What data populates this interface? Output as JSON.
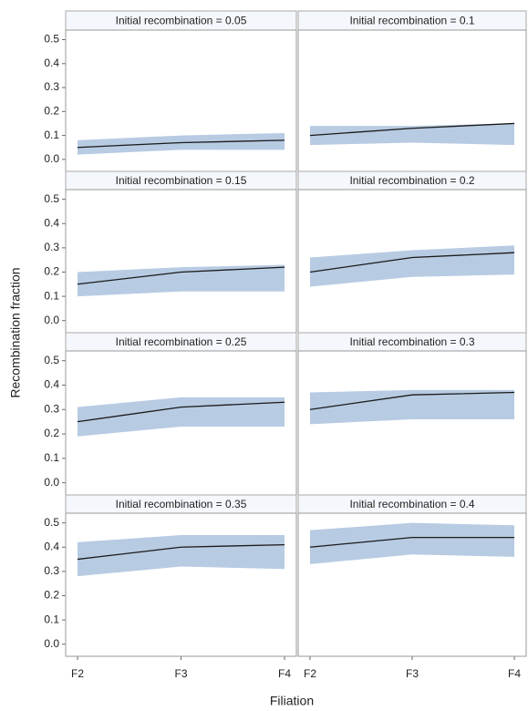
{
  "axis_labels": {
    "x": "Filiation",
    "y": "Recombination fraction"
  },
  "chart_data": [
    {
      "type": "line",
      "title": "Initial recombination = 0.05",
      "categories": [
        "F2",
        "F3",
        "F4"
      ],
      "values": [
        0.05,
        0.07,
        0.08
      ],
      "lower": [
        0.02,
        0.04,
        0.04
      ],
      "upper": [
        0.08,
        0.1,
        0.11
      ],
      "color": "#1a1a1a",
      "band_color": "#b7cbe3",
      "ylim": [
        -0.05,
        0.54
      ],
      "yticks": [
        {
          "value": 0,
          "label": "0.0"
        },
        0.1,
        0.2,
        0.3,
        0.4,
        0.5
      ]
    },
    {
      "type": "line",
      "title": "Initial recombination = 0.1",
      "categories": [
        "F2",
        "F3",
        "F4"
      ],
      "values": [
        0.1,
        0.13,
        0.15
      ],
      "lower": [
        0.06,
        0.07,
        0.06
      ],
      "upper": [
        0.14,
        0.14,
        0.15
      ],
      "color": "#1a1a1a",
      "band_color": "#b7cbe3",
      "ylim": [
        -0.05,
        0.54
      ]
    },
    {
      "type": "line",
      "title": "Initial recombination = 0.15",
      "categories": [
        "F2",
        "F3",
        "F4"
      ],
      "values": [
        0.15,
        0.2,
        0.22
      ],
      "lower": [
        0.1,
        0.12,
        0.12
      ],
      "upper": [
        0.2,
        0.22,
        0.23
      ],
      "color": "#1a1a1a",
      "band_color": "#b7cbe3",
      "ylim": [
        -0.05,
        0.54
      ],
      "yticks": [
        {
          "value": 0,
          "label": "0.0"
        },
        0.1,
        0.2,
        0.3,
        0.4,
        0.5
      ]
    },
    {
      "type": "line",
      "title": "Initial recombination = 0.2",
      "categories": [
        "F2",
        "F3",
        "F4"
      ],
      "values": [
        0.2,
        0.26,
        0.28
      ],
      "lower": [
        0.14,
        0.18,
        0.19
      ],
      "upper": [
        0.26,
        0.29,
        0.31
      ],
      "color": "#1a1a1a",
      "band_color": "#b7cbe3",
      "ylim": [
        -0.05,
        0.54
      ]
    },
    {
      "type": "line",
      "title": "Initial recombination = 0.25",
      "categories": [
        "F2",
        "F3",
        "F4"
      ],
      "values": [
        0.25,
        0.31,
        0.33
      ],
      "lower": [
        0.19,
        0.23,
        0.23
      ],
      "upper": [
        0.31,
        0.35,
        0.35
      ],
      "color": "#1a1a1a",
      "band_color": "#b7cbe3",
      "ylim": [
        -0.05,
        0.54
      ],
      "yticks": [
        {
          "value": 0,
          "label": "0.0"
        },
        0.1,
        0.2,
        0.3,
        0.4,
        0.5
      ]
    },
    {
      "type": "line",
      "title": "Initial recombination = 0.3",
      "categories": [
        "F2",
        "F3",
        "F4"
      ],
      "values": [
        0.3,
        0.36,
        0.37
      ],
      "lower": [
        0.24,
        0.26,
        0.26
      ],
      "upper": [
        0.37,
        0.38,
        0.38
      ],
      "color": "#1a1a1a",
      "band_color": "#b7cbe3",
      "ylim": [
        -0.05,
        0.54
      ]
    },
    {
      "type": "line",
      "title": "Initial recombination = 0.35",
      "categories": [
        "F2",
        "F3",
        "F4"
      ],
      "values": [
        0.35,
        0.4,
        0.41
      ],
      "lower": [
        0.28,
        0.32,
        0.31
      ],
      "upper": [
        0.42,
        0.45,
        0.45
      ],
      "color": "#1a1a1a",
      "band_color": "#b7cbe3",
      "ylim": [
        -0.05,
        0.54
      ],
      "yticks": [
        {
          "value": 0,
          "label": "0.0"
        },
        0.1,
        0.2,
        0.3,
        0.4,
        0.5
      ],
      "show_categories": true
    },
    {
      "type": "line",
      "title": "Initial recombination = 0.4",
      "categories": [
        "F2",
        "F3",
        "F4"
      ],
      "values": [
        0.4,
        0.44,
        0.44
      ],
      "lower": [
        0.33,
        0.37,
        0.36
      ],
      "upper": [
        0.47,
        0.5,
        0.49
      ],
      "color": "#1a1a1a",
      "band_color": "#b7cbe3",
      "ylim": [
        -0.05,
        0.54
      ],
      "show_categories": true
    }
  ]
}
